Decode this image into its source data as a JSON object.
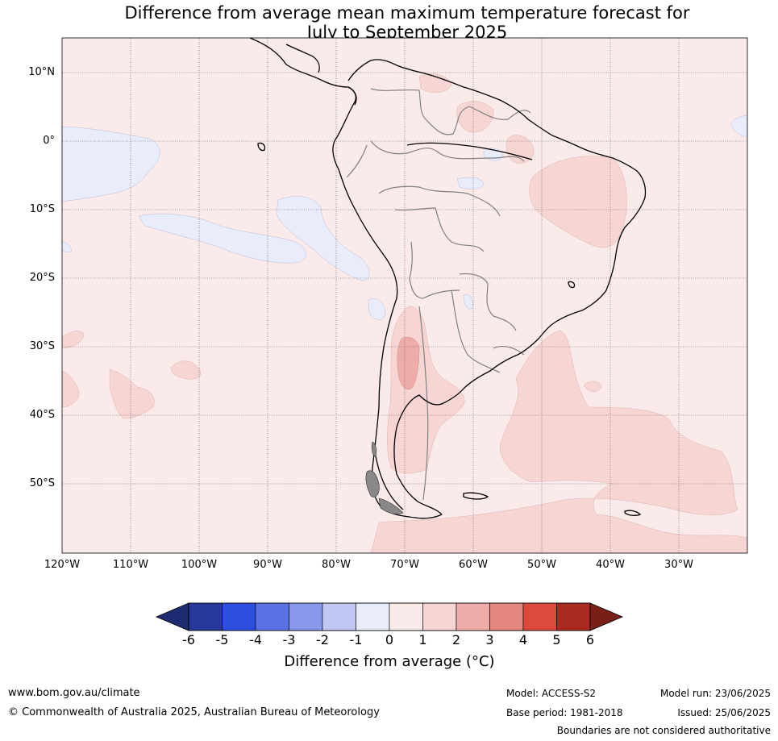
{
  "title_line1": "Difference from average mean maximum temperature forecast for",
  "title_line2": "July to September 2025",
  "lat_labels": [
    "10°N",
    "0°",
    "10°S",
    "20°S",
    "30°S",
    "40°S",
    "50°S"
  ],
  "lon_labels": [
    "120°W",
    "110°W",
    "100°W",
    "90°W",
    "80°W",
    "70°W",
    "60°W",
    "50°W",
    "40°W",
    "30°W"
  ],
  "colorbar": {
    "ticks": [
      "-6",
      "-5",
      "-4",
      "-3",
      "-2",
      "-1",
      "0",
      "1",
      "2",
      "3",
      "4",
      "5",
      "6"
    ],
    "colors": [
      "#28389b",
      "#2e4ee0",
      "#5a72e3",
      "#8899ec",
      "#c0c8f3",
      "#e8ecfb",
      "#fbeaea",
      "#f6d5d3",
      "#edaca7",
      "#e58780",
      "#dc4a3e",
      "#aa2a22"
    ],
    "under_color": "#1e2a72",
    "over_color": "#7a1e18",
    "label": "Difference from average (°C)"
  },
  "footer": {
    "website": "www.bom.gov.au/climate",
    "copyright": "© Commonwealth of Australia 2025, Australian Bureau of Meteorology",
    "model": "Model: ACCESS-S2",
    "base_period": "Base period: 1981-2018",
    "model_run": "Model run: 23/06/2025",
    "issued": "Issued: 25/06/2025",
    "disclaimer": "Boundaries are not considered authoritative"
  }
}
